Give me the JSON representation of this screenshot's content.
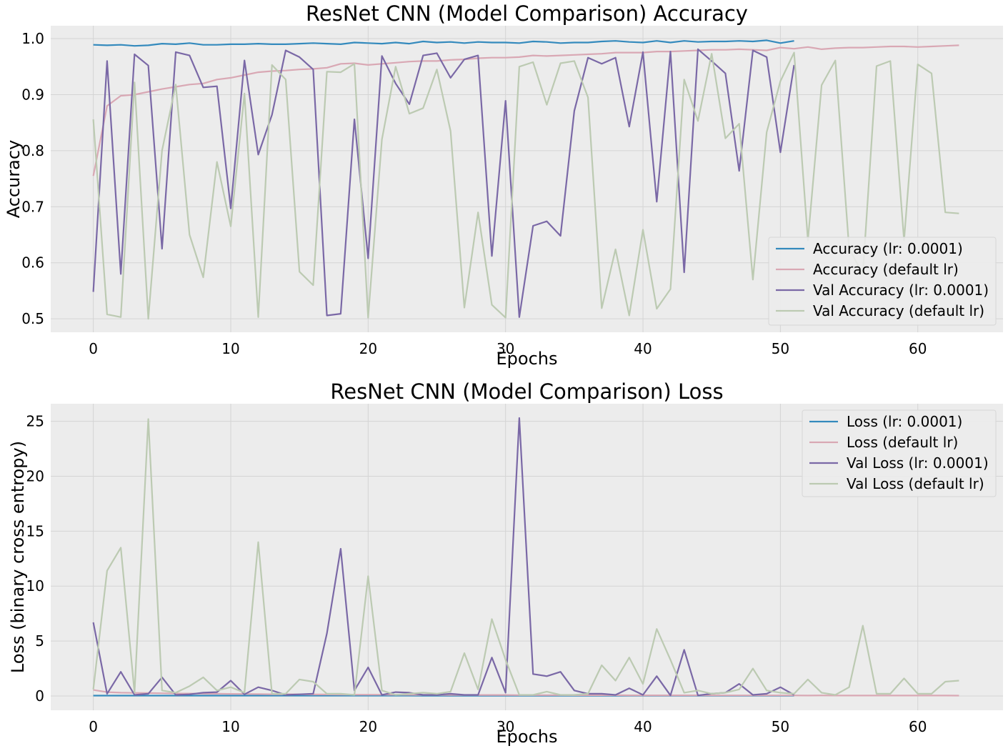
{
  "colors": {
    "figure_bg": "#ffffff",
    "axes_bg": "#ececec",
    "grid": "#d4d4d4",
    "series_1": "#348abd",
    "series_2": "#d9a8b4",
    "series_3": "#7a68a6",
    "series_4": "#bccab2"
  },
  "chart_data": [
    {
      "type": "line",
      "title": "ResNet CNN (Model Comparison) Accuracy",
      "xlabel": "Epochs",
      "ylabel": "Accuracy",
      "xlim": [
        -3.1,
        66.2
      ],
      "ylim": [
        0.476,
        1.023
      ],
      "xticks": [
        0,
        10,
        20,
        30,
        40,
        50,
        60
      ],
      "yticks": [
        0.5,
        0.6,
        0.7,
        0.8,
        0.9,
        1.0
      ],
      "ytick_labels": [
        "0.5",
        "0.6",
        "0.7",
        "0.8",
        "0.9",
        "1.0"
      ],
      "grid": true,
      "legend_position": "lower right",
      "series": [
        {
          "name": "Accuracy (lr: 0.0001)",
          "color": "#348abd",
          "values": [
            0.989,
            0.988,
            0.989,
            0.987,
            0.988,
            0.991,
            0.99,
            0.992,
            0.989,
            0.989,
            0.99,
            0.99,
            0.991,
            0.99,
            0.99,
            0.991,
            0.992,
            0.991,
            0.99,
            0.993,
            0.992,
            0.991,
            0.993,
            0.991,
            0.995,
            0.993,
            0.994,
            0.992,
            0.994,
            0.993,
            0.993,
            0.992,
            0.995,
            0.994,
            0.992,
            0.993,
            0.993,
            0.995,
            0.996,
            0.994,
            0.993,
            0.996,
            0.993,
            0.996,
            0.994,
            0.995,
            0.995,
            0.996,
            0.995,
            0.997,
            0.992,
            0.996
          ]
        },
        {
          "name": "Accuracy (default lr)",
          "color": "#d9a8b4",
          "values": [
            0.755,
            0.88,
            0.898,
            0.9,
            0.905,
            0.91,
            0.914,
            0.918,
            0.92,
            0.927,
            0.93,
            0.935,
            0.94,
            0.942,
            0.943,
            0.945,
            0.946,
            0.948,
            0.955,
            0.956,
            0.953,
            0.955,
            0.957,
            0.959,
            0.96,
            0.96,
            0.962,
            0.963,
            0.965,
            0.966,
            0.966,
            0.967,
            0.97,
            0.969,
            0.97,
            0.971,
            0.972,
            0.973,
            0.975,
            0.975,
            0.975,
            0.977,
            0.977,
            0.978,
            0.979,
            0.98,
            0.98,
            0.981,
            0.98,
            0.979,
            0.984,
            0.982,
            0.985,
            0.981,
            0.983,
            0.984,
            0.984,
            0.985,
            0.986,
            0.986,
            0.985,
            0.986,
            0.987,
            0.988
          ]
        },
        {
          "name": "Val Accuracy (lr: 0.0001)",
          "color": "#7a68a6",
          "values": [
            0.548,
            0.96,
            0.58,
            0.972,
            0.952,
            0.625,
            0.976,
            0.97,
            0.913,
            0.915,
            0.697,
            0.961,
            0.793,
            0.864,
            0.979,
            0.967,
            0.945,
            0.506,
            0.509,
            0.856,
            0.608,
            0.969,
            0.92,
            0.883,
            0.97,
            0.974,
            0.93,
            0.963,
            0.97,
            0.612,
            0.889,
            0.503,
            0.666,
            0.674,
            0.648,
            0.871,
            0.966,
            0.955,
            0.966,
            0.843,
            0.976,
            0.709,
            0.977,
            0.583,
            0.981,
            0.96,
            0.938,
            0.764,
            0.979,
            0.967,
            0.797,
            0.953
          ]
        },
        {
          "name": "Val Accuracy (default lr)",
          "color": "#bccab2",
          "values": [
            0.856,
            0.508,
            0.503,
            0.922,
            0.5,
            0.8,
            0.918,
            0.65,
            0.574,
            0.78,
            0.665,
            0.902,
            0.503,
            0.953,
            0.927,
            0.584,
            0.56,
            0.941,
            0.94,
            0.955,
            0.502,
            0.82,
            0.95,
            0.866,
            0.876,
            0.945,
            0.835,
            0.52,
            0.69,
            0.525,
            0.502,
            0.95,
            0.958,
            0.882,
            0.956,
            0.96,
            0.895,
            0.519,
            0.624,
            0.506,
            0.659,
            0.518,
            0.553,
            0.927,
            0.853,
            0.973,
            0.822,
            0.848,
            0.57,
            0.833,
            0.924,
            0.975,
            0.64,
            0.917,
            0.961,
            0.625,
            0.58,
            0.951,
            0.96,
            0.64,
            0.954,
            0.938,
            0.69,
            0.688
          ]
        }
      ]
    },
    {
      "type": "line",
      "title": "ResNet CNN (Model Comparison) Loss",
      "xlabel": "Epochs",
      "ylabel": "Loss (binary cross entropy)",
      "xlim": [
        -3.1,
        66.2
      ],
      "ylim": [
        -1.3,
        26.6
      ],
      "xticks": [
        0,
        10,
        20,
        30,
        40,
        50,
        60
      ],
      "yticks": [
        0,
        5,
        10,
        15,
        20,
        25
      ],
      "ytick_labels": [
        "0",
        "5",
        "10",
        "15",
        "20",
        "25"
      ],
      "grid": true,
      "legend_position": "upper right",
      "series": [
        {
          "name": "Loss (lr: 0.0001)",
          "color": "#348abd",
          "values": [
            0.03,
            0.03,
            0.03,
            0.03,
            0.03,
            0.03,
            0.03,
            0.03,
            0.03,
            0.03,
            0.03,
            0.03,
            0.03,
            0.03,
            0.03,
            0.03,
            0.03,
            0.03,
            0.03,
            0.03,
            0.03,
            0.03,
            0.03,
            0.03,
            0.02,
            0.02,
            0.02,
            0.02,
            0.02,
            0.02,
            0.02,
            0.02,
            0.02,
            0.02,
            0.02,
            0.02,
            0.02,
            0.02,
            0.02,
            0.02,
            0.02,
            0.02,
            0.02,
            0.02,
            0.02,
            0.02,
            0.02,
            0.02,
            0.02,
            0.02,
            0.02,
            0.02
          ]
        },
        {
          "name": "Loss (default lr)",
          "color": "#d9a8b4",
          "values": [
            0.55,
            0.35,
            0.3,
            0.28,
            0.27,
            0.25,
            0.23,
            0.22,
            0.21,
            0.2,
            0.19,
            0.18,
            0.17,
            0.16,
            0.16,
            0.15,
            0.14,
            0.14,
            0.13,
            0.12,
            0.12,
            0.12,
            0.11,
            0.11,
            0.1,
            0.1,
            0.1,
            0.09,
            0.09,
            0.09,
            0.09,
            0.08,
            0.08,
            0.08,
            0.08,
            0.07,
            0.07,
            0.07,
            0.07,
            0.06,
            0.06,
            0.06,
            0.06,
            0.06,
            0.06,
            0.05,
            0.05,
            0.05,
            0.05,
            0.05,
            0.05,
            0.05,
            0.04,
            0.05,
            0.04,
            0.04,
            0.04,
            0.04,
            0.04,
            0.04,
            0.04,
            0.04,
            0.04,
            0.03
          ]
        },
        {
          "name": "Val Loss (lr: 0.0001)",
          "color": "#7a68a6",
          "values": [
            6.7,
            0.2,
            2.2,
            0.1,
            0.2,
            1.7,
            0.1,
            0.15,
            0.3,
            0.35,
            1.4,
            0.15,
            0.8,
            0.5,
            0.1,
            0.15,
            0.2,
            5.7,
            13.4,
            0.5,
            2.6,
            0.1,
            0.35,
            0.3,
            0.1,
            0.1,
            0.2,
            0.1,
            0.1,
            3.5,
            0.3,
            25.3,
            2.0,
            1.8,
            2.2,
            0.5,
            0.2,
            0.2,
            0.1,
            0.7,
            0.1,
            1.8,
            0.05,
            4.2,
            0.05,
            0.2,
            0.3,
            1.1,
            0.1,
            0.2,
            0.8,
            0.1
          ]
        },
        {
          "name": "Val Loss (default lr)",
          "color": "#bccab2",
          "values": [
            0.6,
            11.4,
            13.5,
            0.3,
            25.2,
            0.5,
            0.3,
            0.9,
            1.7,
            0.5,
            0.8,
            0.3,
            14.0,
            0.2,
            0.2,
            1.5,
            1.3,
            0.2,
            0.2,
            0.1,
            10.9,
            0.5,
            0.1,
            0.2,
            0.3,
            0.2,
            0.4,
            3.9,
            0.6,
            7.0,
            3.3,
            0.1,
            0.1,
            0.4,
            0.1,
            0.1,
            0.2,
            2.8,
            1.4,
            3.5,
            1.1,
            6.1,
            3.3,
            0.3,
            0.5,
            0.2,
            0.3,
            0.6,
            2.5,
            0.5,
            0.3,
            0.2,
            1.5,
            0.3,
            0.1,
            0.8,
            6.4,
            0.2,
            0.2,
            1.6,
            0.2,
            0.2,
            1.3,
            1.4
          ]
        }
      ]
    }
  ]
}
